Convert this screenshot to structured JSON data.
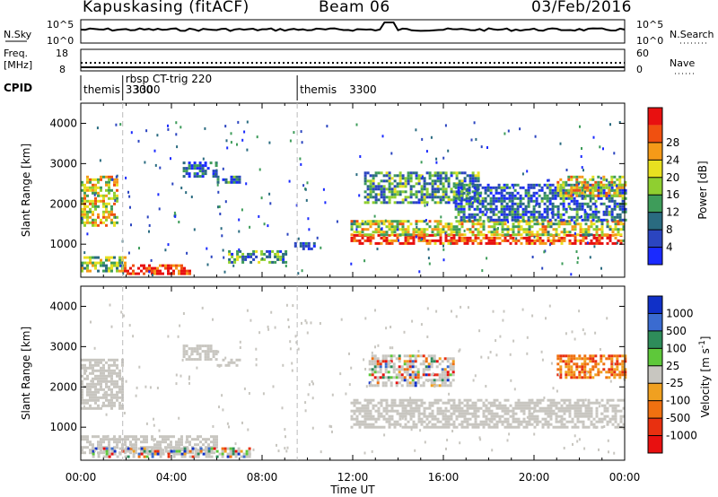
{
  "header": {
    "station": "Kapuskasing (fitACF)",
    "beam": "Beam 06",
    "date": "03/Feb/2016"
  },
  "side_labels": {
    "nsky": "N.Sky",
    "nsearch": "N.Search",
    "freq_line1": "Freq.",
    "freq_line2": "[MHz]",
    "nave": "Nave",
    "cpid": "CPID"
  },
  "noise_axis": {
    "left_top": "10^5",
    "left_bottom": "10^0",
    "right_top": "10^5",
    "right_bottom": "10^0"
  },
  "freq_axis": {
    "left_top": "18",
    "left_bottom": "8",
    "right_top": "60",
    "right_bottom": "0"
  },
  "cpid_segments": [
    {
      "start_hour": 0.0,
      "name": "themis",
      "id": "3300"
    },
    {
      "start_hour": 1.85,
      "name": "rbsp CT-trig",
      "id": "220"
    },
    {
      "start_hour": 9.55,
      "name": "themis",
      "id": "3300"
    }
  ],
  "chart_data": [
    {
      "type": "heatmap",
      "title": "Power",
      "ylabel": "Slant Range [km]",
      "colorbar_label": "Power [dB]",
      "colorbar_ticks": [
        "4",
        "8",
        "12",
        "16",
        "20",
        "24",
        "28"
      ],
      "ylim": [
        180,
        4500
      ],
      "yticks": [
        "1000",
        "2000",
        "3000",
        "4000"
      ],
      "colors": [
        "#1a2aff",
        "#2b45c0",
        "#2a6b80",
        "#3e9c5a",
        "#8fcf30",
        "#e8e020",
        "#f59a18",
        "#f05010",
        "#e81010"
      ],
      "regions": [
        {
          "x": [
            0.0,
            1.6
          ],
          "y": [
            1450,
            2700
          ],
          "level": 0.6
        },
        {
          "x": [
            0.0,
            2.0
          ],
          "y": [
            350,
            700
          ],
          "level": 0.5
        },
        {
          "x": [
            1.9,
            4.8
          ],
          "y": [
            250,
            500
          ],
          "level": 0.95
        },
        {
          "x": [
            4.5,
            6.0
          ],
          "y": [
            2650,
            3050
          ],
          "level": 0.2
        },
        {
          "x": [
            6.0,
            7.0
          ],
          "y": [
            2500,
            2700
          ],
          "level": 0.25
        },
        {
          "x": [
            6.5,
            9.0
          ],
          "y": [
            550,
            850
          ],
          "level": 0.35
        },
        {
          "x": [
            9.3,
            10.3
          ],
          "y": [
            900,
            1050
          ],
          "level": 0.2
        },
        {
          "x": [
            11.9,
            23.9
          ],
          "y": [
            1000,
            1250
          ],
          "level": 0.9
        },
        {
          "x": [
            11.9,
            24.0
          ],
          "y": [
            1250,
            1600
          ],
          "level": 0.55
        },
        {
          "x": [
            12.5,
            17.5
          ],
          "y": [
            2000,
            2800
          ],
          "level": 0.35
        },
        {
          "x": [
            16.5,
            24.0
          ],
          "y": [
            1600,
            2500
          ],
          "level": 0.25
        },
        {
          "x": [
            21.0,
            24.0
          ],
          "y": [
            2200,
            2700
          ],
          "level": 0.6
        }
      ]
    },
    {
      "type": "heatmap",
      "title": "Velocity",
      "ylabel": "Slant Range [km]",
      "xlabel": "Time UT",
      "xticks": [
        "00:00",
        "04:00",
        "08:00",
        "12:00",
        "16:00",
        "20:00",
        "00:00"
      ],
      "colorbar_label": "Velocity [m s^-1]",
      "colorbar_ticks": [
        "1000",
        "500",
        "100",
        "25",
        "-25",
        "-100",
        "-500",
        "-1000"
      ],
      "ylim": [
        180,
        4500
      ],
      "yticks": [
        "1000",
        "2000",
        "3000",
        "4000"
      ],
      "ground_scatter_color": "#c8c6c0",
      "colors": [
        "#1030c8",
        "#3a6bd0",
        "#2e8c5a",
        "#5ec83a",
        "#c8c6c0",
        "#f0a020",
        "#f07010",
        "#e83010",
        "#e81010"
      ],
      "regions": [
        {
          "x": [
            0.0,
            1.8
          ],
          "y": [
            1450,
            2700
          ],
          "kind": "ground"
        },
        {
          "x": [
            0.0,
            6.0
          ],
          "y": [
            350,
            800
          ],
          "kind": "ground"
        },
        {
          "x": [
            0.5,
            7.5
          ],
          "y": [
            250,
            500
          ],
          "kind": "mixed"
        },
        {
          "x": [
            4.5,
            6.0
          ],
          "y": [
            2650,
            3050
          ],
          "kind": "ground"
        },
        {
          "x": [
            6.0,
            7.0
          ],
          "y": [
            2500,
            2700
          ],
          "kind": "ground"
        },
        {
          "x": [
            11.9,
            24.0
          ],
          "y": [
            1000,
            1700
          ],
          "kind": "ground"
        },
        {
          "x": [
            12.7,
            16.5
          ],
          "y": [
            2000,
            2800
          ],
          "kind": "mixed"
        },
        {
          "x": [
            21.0,
            24.0
          ],
          "y": [
            2200,
            2800
          ],
          "kind": "orange"
        }
      ]
    }
  ]
}
